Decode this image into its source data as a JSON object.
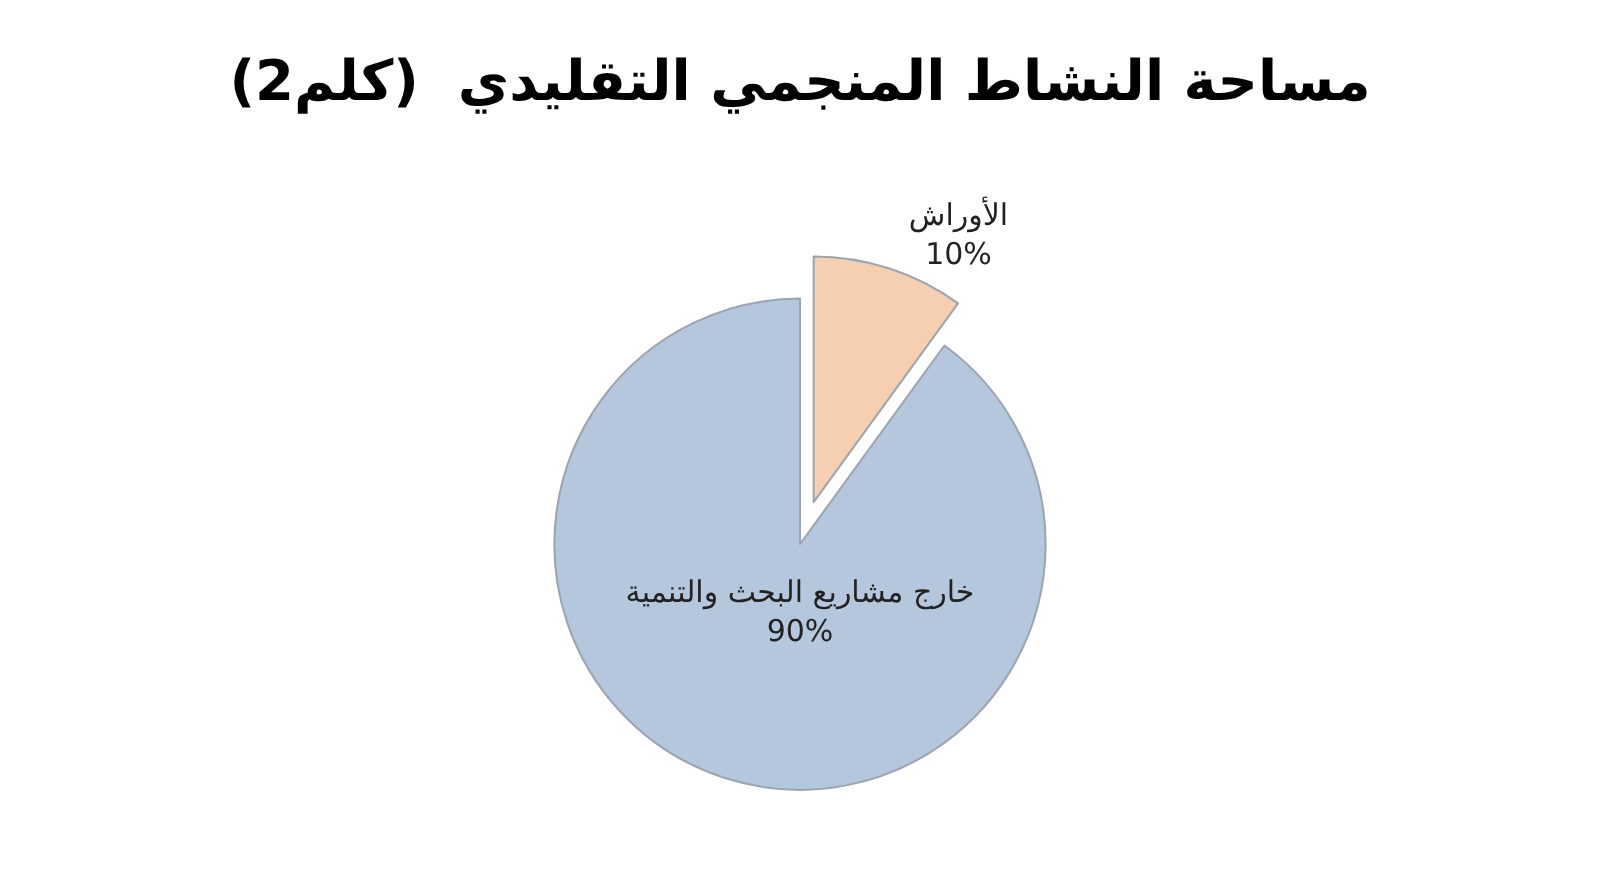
{
  "chart_data": {
    "type": "pie",
    "title": "مساحة النشاط المنجمي التقليدي  (كلم2)",
    "categories": [
      "الأوراش",
      "خارج مشاريع البحث والتنمية"
    ],
    "values": [
      10,
      90
    ],
    "value_labels": [
      "10%",
      "90%"
    ],
    "colors": [
      "#f5cfb0",
      "#b4c7dc"
    ],
    "legend": false
  }
}
